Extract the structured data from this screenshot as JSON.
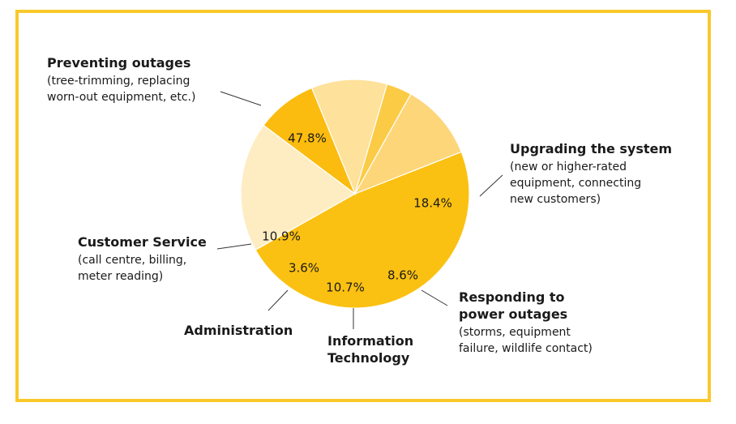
{
  "chart_data": {
    "type": "pie",
    "title": "",
    "slices": [
      {
        "id": "preventing-outages",
        "value": 47.8,
        "value_label": "47.8%",
        "title_lines": [
          "Preventing outages"
        ],
        "desc_lines": [
          "(tree-trimming, replacing",
          "worn-out equipment, etc.)"
        ],
        "color": "#FBC112"
      },
      {
        "id": "upgrading-system",
        "value": 18.4,
        "value_label": "18.4%",
        "title_lines": [
          "Upgrading the system"
        ],
        "desc_lines": [
          "(new or higher-rated",
          "equipment, connecting",
          "new customers)"
        ],
        "color": "#FEEDC3"
      },
      {
        "id": "responding-outages",
        "value": 8.6,
        "value_label": "8.6%",
        "title_lines": [
          "Responding to",
          "power outages"
        ],
        "desc_lines": [
          "(storms, equipment",
          "failure, wildlife contact)"
        ],
        "color": "#FBBC0F"
      },
      {
        "id": "information-technology",
        "value": 10.7,
        "value_label": "10.7%",
        "title_lines": [
          "Information",
          "Technology"
        ],
        "desc_lines": [],
        "color": "#FEE19A"
      },
      {
        "id": "administration",
        "value": 3.6,
        "value_label": "3.6%",
        "title_lines": [
          "Administration"
        ],
        "desc_lines": [],
        "color": "#FCCB45"
      },
      {
        "id": "customer-service",
        "value": 10.9,
        "value_label": "10.9%",
        "title_lines": [
          "Customer Service"
        ],
        "desc_lines": [
          "(call centre, billing,",
          "meter reading)"
        ],
        "color": "#FDD67A"
      }
    ],
    "frame_color": "#F9C92B"
  }
}
